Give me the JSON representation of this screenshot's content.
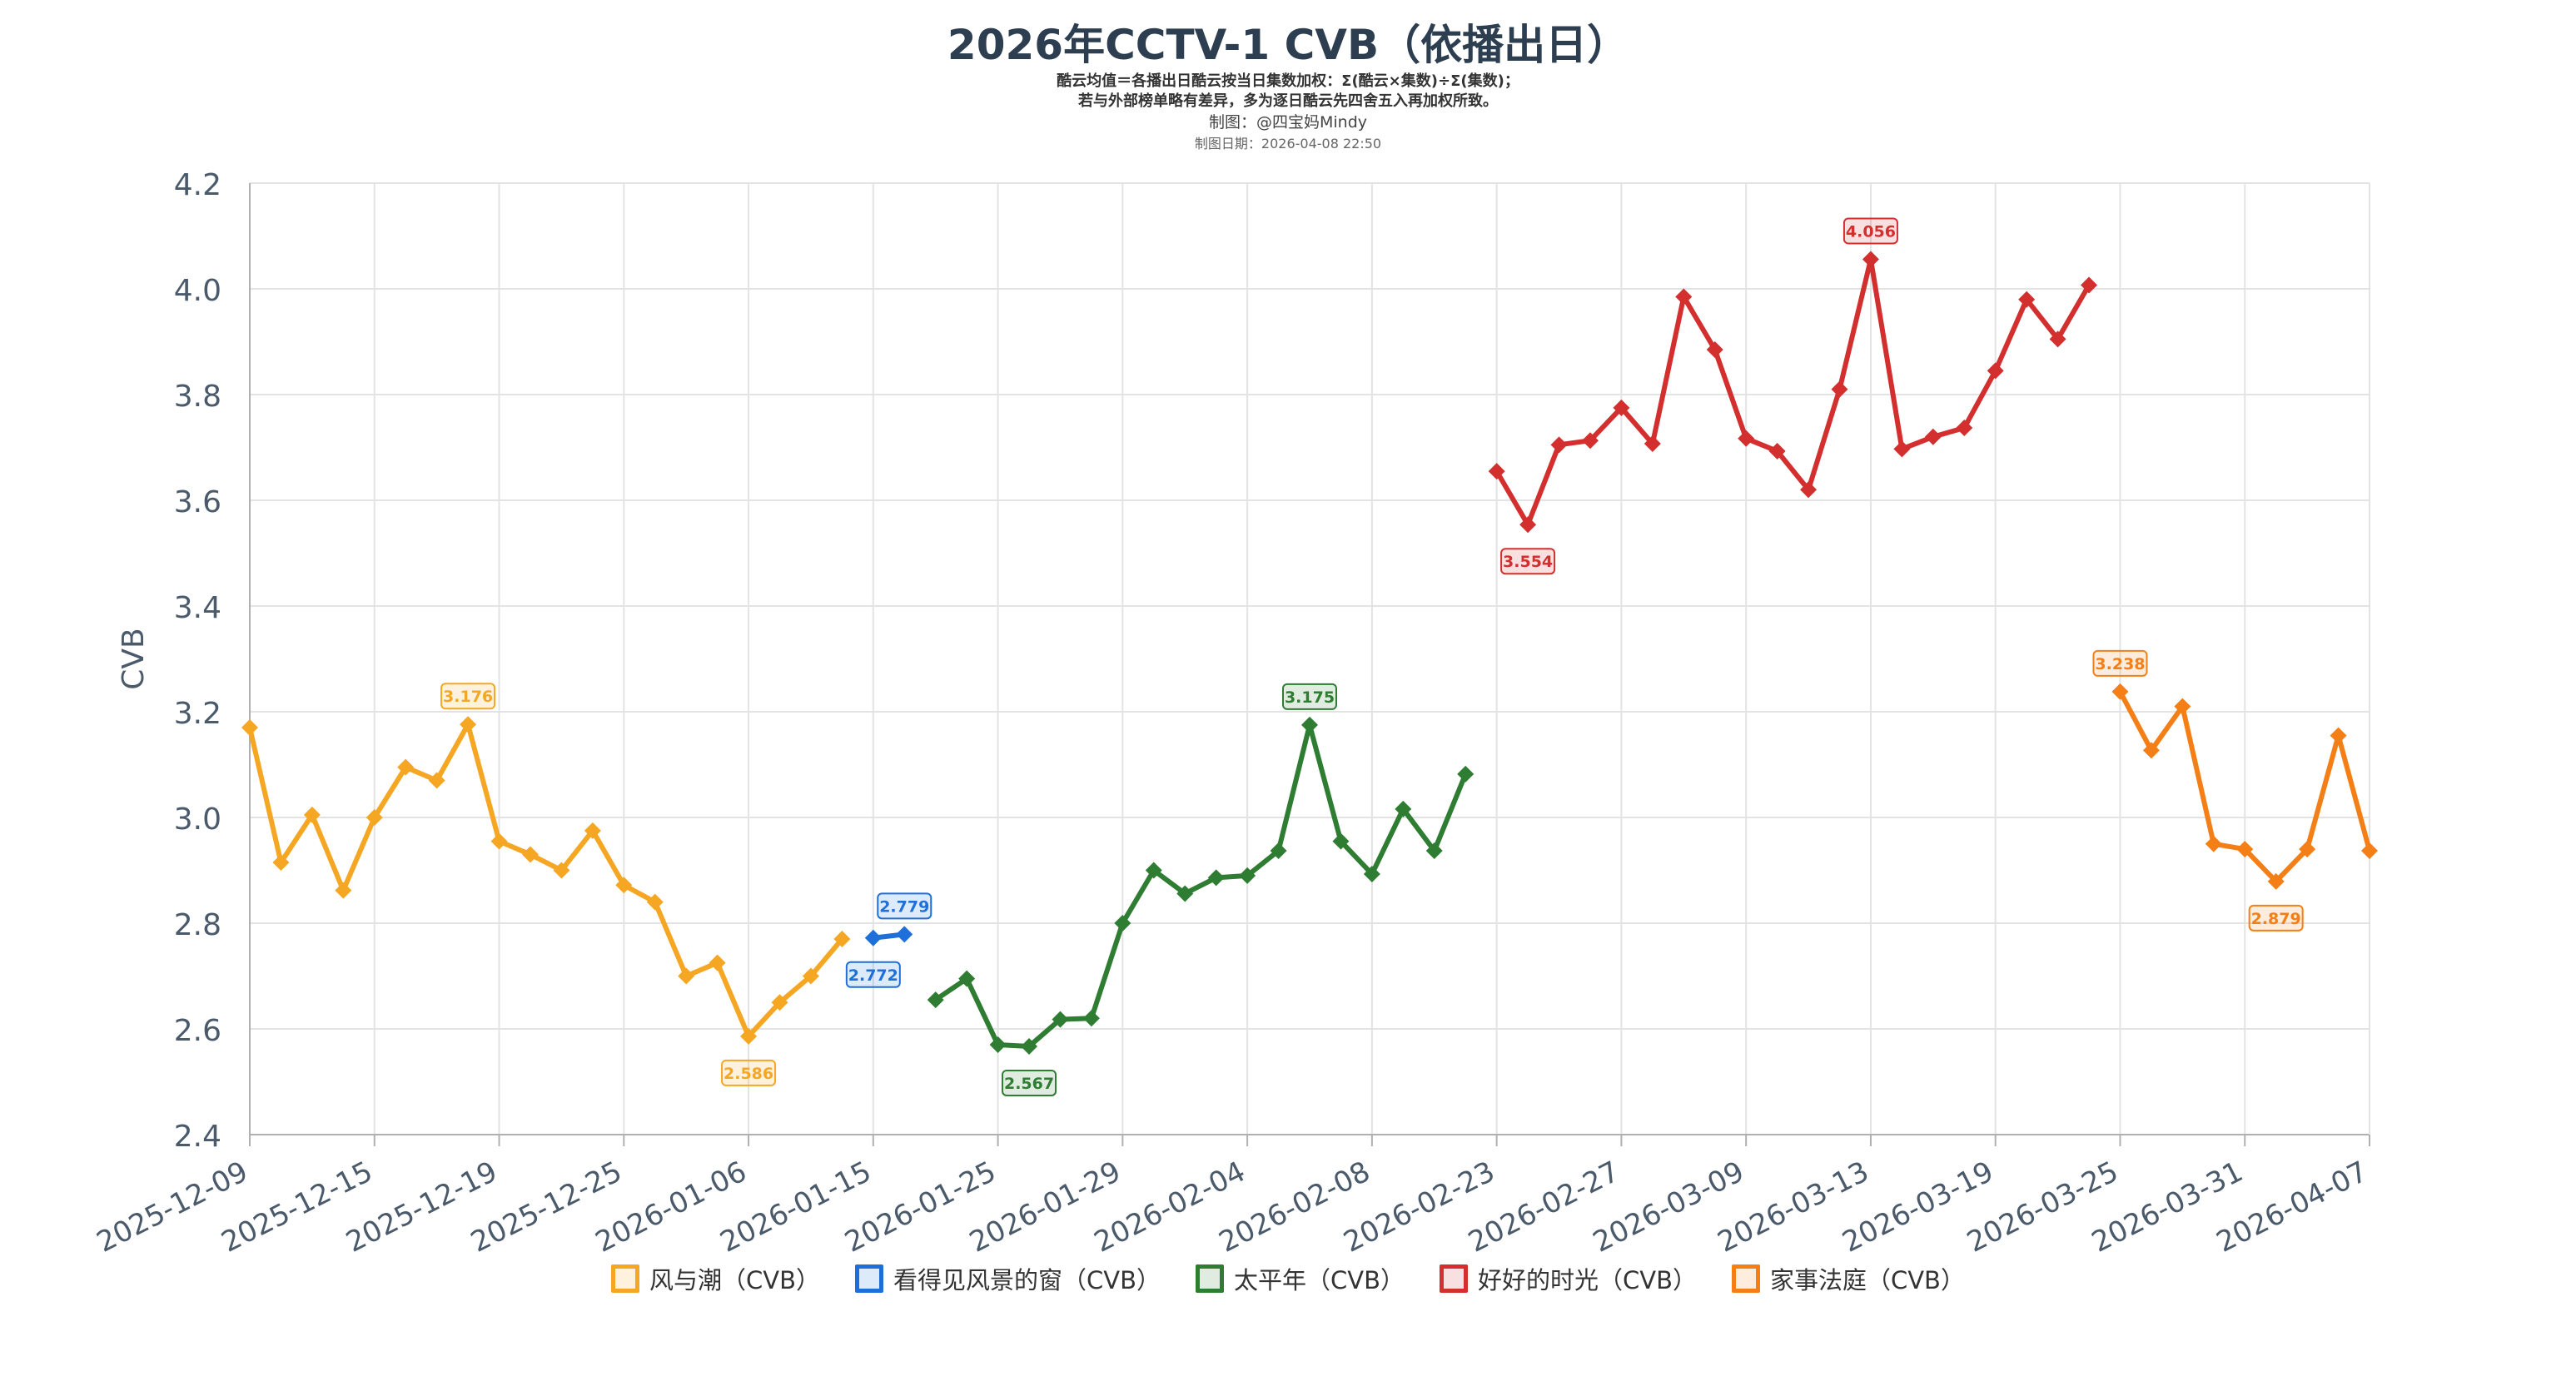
{
  "header": {
    "title": "2026年CCTV-1 CVB（依播出日）",
    "subtitle_line1": "酷云均值＝各播出日酷云按当日集数加权：Σ(酷云×集数)÷Σ(集数)；",
    "subtitle_line2": "若与外部榜单略有差异，多为逐日酷云先四舍五入再加权所致。",
    "credit": "制图：@四宝妈Mindy",
    "date": "制图日期：2026-04-08 22:50"
  },
  "chart_data": {
    "type": "line",
    "title": "2026年CCTV-1 CVB（依播出日）",
    "ylabel": "CVB",
    "xlabel": "",
    "ylim": [
      2.4,
      4.2
    ],
    "yticks": [
      "2.4",
      "2.6",
      "2.8",
      "3.0",
      "3.2",
      "3.4",
      "3.6",
      "3.8",
      "4.0",
      "4.2"
    ],
    "x_categories_count": 69,
    "x_tick_labels": [
      "2025-12-09",
      "2025-12-15",
      "2025-12-19",
      "2025-12-25",
      "2026-01-06",
      "2026-01-15",
      "2026-01-25",
      "2026-01-29",
      "2026-02-04",
      "2026-02-08",
      "2026-02-23",
      "2026-02-27",
      "2026-03-09",
      "2026-03-13",
      "2026-03-19",
      "2026-03-25",
      "2026-03-31",
      "2026-04-07"
    ],
    "x_tick_indices": [
      0,
      4,
      8,
      12,
      16,
      20,
      24,
      28,
      32,
      36,
      40,
      44,
      48,
      52,
      56,
      60,
      64,
      68
    ],
    "grid": true,
    "legend_position": "bottom",
    "series": [
      {
        "name": "风与潮（CVB）",
        "color": "#F5A623",
        "start_index": 0,
        "values": [
          3.17,
          2.915,
          3.005,
          2.862,
          3.0,
          3.095,
          3.07,
          3.176,
          2.955,
          2.93,
          2.9,
          2.975,
          2.872,
          2.84,
          2.7,
          2.725,
          2.586,
          2.65,
          2.7,
          2.77
        ],
        "labels": [
          {
            "i": 7,
            "text": "3.176",
            "pos": "above"
          },
          {
            "i": 16,
            "text": "2.586",
            "pos": "below"
          }
        ]
      },
      {
        "name": "看得见风景的窗（CVB）",
        "color": "#1E6FD9",
        "start_index": 20,
        "values": [
          2.772,
          2.779
        ],
        "labels": [
          {
            "i": 0,
            "text": "2.772",
            "pos": "below"
          },
          {
            "i": 1,
            "text": "2.779",
            "pos": "above"
          }
        ]
      },
      {
        "name": "太平年（CVB）",
        "color": "#2E7D32",
        "start_index": 22,
        "values": [
          2.655,
          2.695,
          2.57,
          2.567,
          2.618,
          2.62,
          2.8,
          2.9,
          2.856,
          2.886,
          2.89,
          2.937,
          3.175,
          2.955,
          2.893,
          3.016,
          2.937,
          3.082
        ],
        "labels": [
          {
            "i": 3,
            "text": "2.567",
            "pos": "below"
          },
          {
            "i": 12,
            "text": "3.175",
            "pos": "above"
          }
        ]
      },
      {
        "name": "好好的时光（CVB）",
        "color": "#D32F2F",
        "start_index": 40,
        "values": [
          3.655,
          3.554,
          3.705,
          3.713,
          3.775,
          3.707,
          3.985,
          3.885,
          3.717,
          3.693,
          3.62,
          3.81,
          4.056,
          3.697,
          3.72,
          3.737,
          3.845,
          3.98,
          3.905,
          4.007
        ],
        "labels": [
          {
            "i": 1,
            "text": "3.554",
            "pos": "below"
          },
          {
            "i": 12,
            "text": "4.056",
            "pos": "above"
          }
        ]
      },
      {
        "name": "家事法庭（CVB）",
        "color": "#F57F17",
        "start_index": 60,
        "values": [
          3.238,
          3.127,
          3.21,
          2.95,
          2.94,
          2.879,
          2.94,
          3.155,
          2.937
        ],
        "labels": [
          {
            "i": 0,
            "text": "3.238",
            "pos": "above"
          },
          {
            "i": 5,
            "text": "2.879",
            "pos": "below"
          }
        ]
      }
    ]
  }
}
